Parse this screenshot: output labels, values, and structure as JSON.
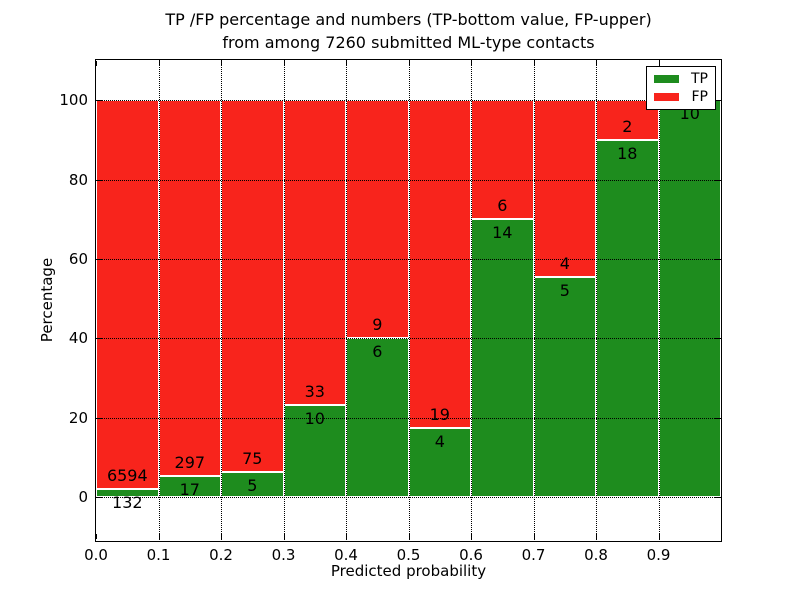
{
  "chart_data": {
    "type": "bar",
    "subtype": "stacked-percentage-histogram",
    "title_line1": "TP /FP percentage and numbers (TP-bottom value, FP-upper)",
    "title_line2": "from among 7260 submitted ML-type contacts",
    "xlabel": "Predicted probability",
    "ylabel": "Percentage",
    "total_contacts_in_title": 7260,
    "bin_width": 0.1,
    "bin_starts": [
      0.0,
      0.1,
      0.2,
      0.3,
      0.4,
      0.5,
      0.6,
      0.7,
      0.8,
      0.9
    ],
    "series": [
      {
        "name": "TP",
        "position": "bottom",
        "color": "#1e8c1e",
        "values": [
          132,
          17,
          5,
          10,
          6,
          4,
          14,
          5,
          18,
          10
        ]
      },
      {
        "name": "FP",
        "position": "top",
        "color": "#f8241c",
        "values": [
          6594,
          297,
          75,
          33,
          9,
          19,
          6,
          4,
          2,
          0
        ]
      }
    ],
    "tp_percent_of_bin": [
      2.0,
      5.4,
      6.3,
      23.3,
      40.0,
      17.4,
      70.0,
      55.6,
      90.0,
      100.0
    ],
    "x_ticks": [
      "0.0",
      "0.1",
      "0.2",
      "0.3",
      "0.4",
      "0.5",
      "0.6",
      "0.7",
      "0.8",
      "0.9"
    ],
    "y_ticks": [
      0,
      20,
      40,
      60,
      80,
      100
    ],
    "xlim": [
      0.0,
      1.0
    ],
    "ylim": [
      -10.8,
      110.1
    ],
    "grid": "dotted-black-above-bars",
    "bar_edge_color": "#ffffff",
    "legend": {
      "position": "upper-right",
      "entries": [
        "TP",
        "FP"
      ]
    },
    "text_color": "#000000",
    "background": "#ffffff"
  }
}
